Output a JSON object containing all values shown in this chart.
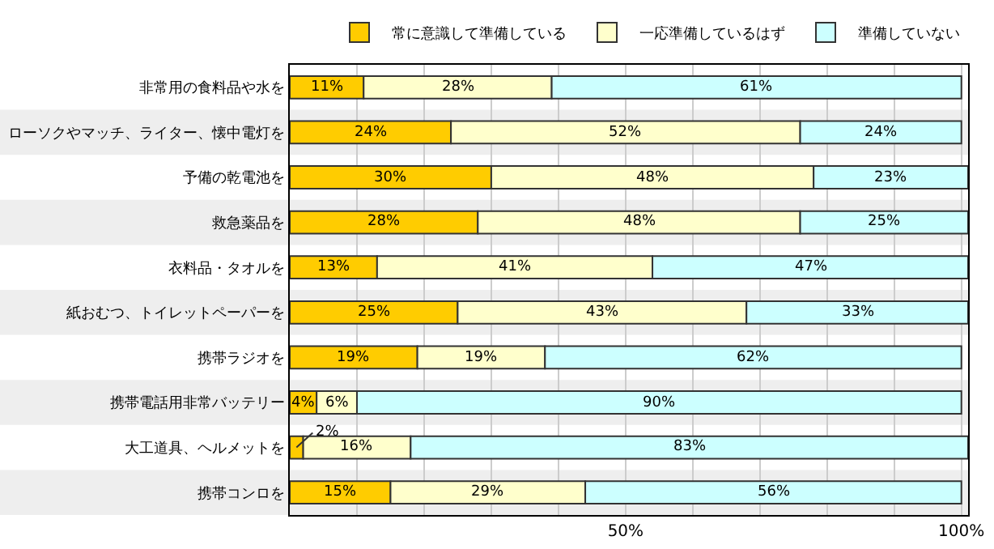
{
  "chart_data": {
    "type": "bar",
    "orientation": "horizontal",
    "stacked": true,
    "categories": [
      "非常用の食料品や水を",
      "ローソクやマッチ、ライター、懐中電灯を",
      "予備の乾電池を",
      "救急薬品を",
      "衣料品・タオルを",
      "紙おむつ、トイレットペーパーを",
      "携帯ラジオを",
      "携帯電話用非常バッテリー",
      "大工道具、ヘルメットを",
      "携帯コンロを"
    ],
    "series": [
      {
        "name": "常に意識して準備している",
        "color": "#ffcc00",
        "values": [
          11,
          24,
          30,
          28,
          13,
          25,
          19,
          4,
          2,
          15
        ],
        "value_labels": [
          "11%",
          "24%",
          "30%",
          "28%",
          "13%",
          "25%",
          "19%",
          "4%",
          "2%",
          "15%"
        ]
      },
      {
        "name": "一応準備しているはず",
        "color": "#ffffcc",
        "values": [
          28,
          52,
          48,
          48,
          41,
          43,
          19,
          6,
          16,
          29
        ],
        "value_labels": [
          "28%",
          "52%",
          "48%",
          "48%",
          "41%",
          "43%",
          "19%",
          "6%",
          "16%",
          "29%"
        ]
      },
      {
        "name": "準備していない",
        "color": "#ccffff",
        "values": [
          61,
          24,
          23,
          25,
          47,
          33,
          62,
          90,
          83,
          56
        ],
        "value_labels": [
          "61%",
          "24%",
          "23%",
          "25%",
          "47%",
          "33%",
          "62%",
          "90%",
          "83%",
          "56%"
        ]
      }
    ],
    "xlim": [
      0,
      101
    ],
    "xticks": [
      {
        "value": 0,
        "label": null
      },
      {
        "value": 10,
        "label": null
      },
      {
        "value": 20,
        "label": null
      },
      {
        "value": 30,
        "label": null
      },
      {
        "value": 40,
        "label": null
      },
      {
        "value": 50,
        "label": "50%"
      },
      {
        "value": 60,
        "label": null
      },
      {
        "value": 70,
        "label": null
      },
      {
        "value": 80,
        "label": null
      },
      {
        "value": 90,
        "label": null
      },
      {
        "value": 100,
        "label": "100%"
      }
    ],
    "grid": "x",
    "legend": "top right"
  }
}
